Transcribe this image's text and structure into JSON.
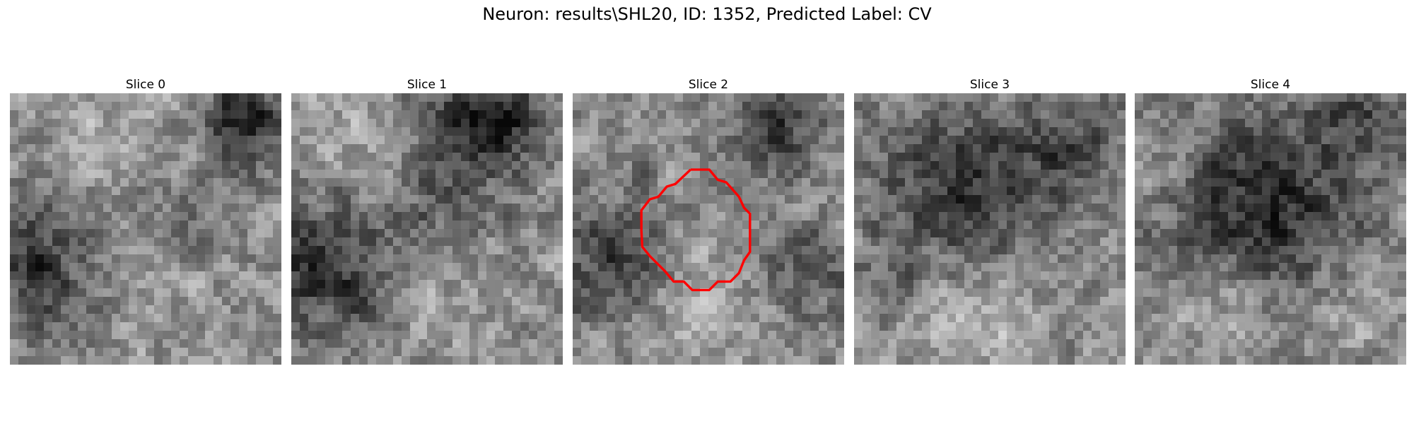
{
  "figure": {
    "title": "Neuron: results\\SHL20, ID: 1352, Predicted Label: CV"
  },
  "panels": [
    {
      "title": "Slice 0"
    },
    {
      "title": "Slice 1"
    },
    {
      "title": "Slice 2"
    },
    {
      "title": "Slice 3"
    },
    {
      "title": "Slice 4"
    }
  ],
  "colors": {
    "contour": "#ff0000",
    "background": "#ffffff",
    "colormap": "grayscale"
  }
}
